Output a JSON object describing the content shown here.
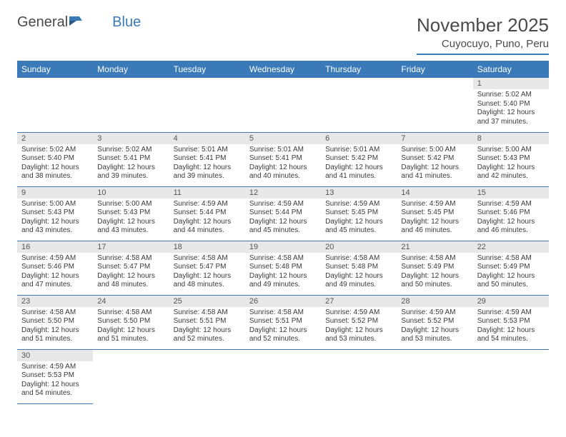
{
  "logo": {
    "general": "General",
    "blue": "Blue"
  },
  "title": "November 2025",
  "location": "Cuyocuyo, Puno, Peru",
  "colors": {
    "header_bg": "#3a7ab8",
    "header_text": "#ffffff",
    "daynum_bg": "#e8e8e8",
    "text": "#3a3a3a",
    "rule": "#3a7ab8",
    "page_bg": "#ffffff"
  },
  "weekdays": [
    "Sunday",
    "Monday",
    "Tuesday",
    "Wednesday",
    "Thursday",
    "Friday",
    "Saturday"
  ],
  "weeks": [
    [
      null,
      null,
      null,
      null,
      null,
      null,
      {
        "n": "1",
        "sr": "5:02 AM",
        "ss": "5:40 PM",
        "dl": "12 hours and 37 minutes."
      }
    ],
    [
      {
        "n": "2",
        "sr": "5:02 AM",
        "ss": "5:40 PM",
        "dl": "12 hours and 38 minutes."
      },
      {
        "n": "3",
        "sr": "5:02 AM",
        "ss": "5:41 PM",
        "dl": "12 hours and 39 minutes."
      },
      {
        "n": "4",
        "sr": "5:01 AM",
        "ss": "5:41 PM",
        "dl": "12 hours and 39 minutes."
      },
      {
        "n": "5",
        "sr": "5:01 AM",
        "ss": "5:41 PM",
        "dl": "12 hours and 40 minutes."
      },
      {
        "n": "6",
        "sr": "5:01 AM",
        "ss": "5:42 PM",
        "dl": "12 hours and 41 minutes."
      },
      {
        "n": "7",
        "sr": "5:00 AM",
        "ss": "5:42 PM",
        "dl": "12 hours and 41 minutes."
      },
      {
        "n": "8",
        "sr": "5:00 AM",
        "ss": "5:43 PM",
        "dl": "12 hours and 42 minutes."
      }
    ],
    [
      {
        "n": "9",
        "sr": "5:00 AM",
        "ss": "5:43 PM",
        "dl": "12 hours and 43 minutes."
      },
      {
        "n": "10",
        "sr": "5:00 AM",
        "ss": "5:43 PM",
        "dl": "12 hours and 43 minutes."
      },
      {
        "n": "11",
        "sr": "4:59 AM",
        "ss": "5:44 PM",
        "dl": "12 hours and 44 minutes."
      },
      {
        "n": "12",
        "sr": "4:59 AM",
        "ss": "5:44 PM",
        "dl": "12 hours and 45 minutes."
      },
      {
        "n": "13",
        "sr": "4:59 AM",
        "ss": "5:45 PM",
        "dl": "12 hours and 45 minutes."
      },
      {
        "n": "14",
        "sr": "4:59 AM",
        "ss": "5:45 PM",
        "dl": "12 hours and 46 minutes."
      },
      {
        "n": "15",
        "sr": "4:59 AM",
        "ss": "5:46 PM",
        "dl": "12 hours and 46 minutes."
      }
    ],
    [
      {
        "n": "16",
        "sr": "4:59 AM",
        "ss": "5:46 PM",
        "dl": "12 hours and 47 minutes."
      },
      {
        "n": "17",
        "sr": "4:58 AM",
        "ss": "5:47 PM",
        "dl": "12 hours and 48 minutes."
      },
      {
        "n": "18",
        "sr": "4:58 AM",
        "ss": "5:47 PM",
        "dl": "12 hours and 48 minutes."
      },
      {
        "n": "19",
        "sr": "4:58 AM",
        "ss": "5:48 PM",
        "dl": "12 hours and 49 minutes."
      },
      {
        "n": "20",
        "sr": "4:58 AM",
        "ss": "5:48 PM",
        "dl": "12 hours and 49 minutes."
      },
      {
        "n": "21",
        "sr": "4:58 AM",
        "ss": "5:49 PM",
        "dl": "12 hours and 50 minutes."
      },
      {
        "n": "22",
        "sr": "4:58 AM",
        "ss": "5:49 PM",
        "dl": "12 hours and 50 minutes."
      }
    ],
    [
      {
        "n": "23",
        "sr": "4:58 AM",
        "ss": "5:50 PM",
        "dl": "12 hours and 51 minutes."
      },
      {
        "n": "24",
        "sr": "4:58 AM",
        "ss": "5:50 PM",
        "dl": "12 hours and 51 minutes."
      },
      {
        "n": "25",
        "sr": "4:58 AM",
        "ss": "5:51 PM",
        "dl": "12 hours and 52 minutes."
      },
      {
        "n": "26",
        "sr": "4:58 AM",
        "ss": "5:51 PM",
        "dl": "12 hours and 52 minutes."
      },
      {
        "n": "27",
        "sr": "4:59 AM",
        "ss": "5:52 PM",
        "dl": "12 hours and 53 minutes."
      },
      {
        "n": "28",
        "sr": "4:59 AM",
        "ss": "5:52 PM",
        "dl": "12 hours and 53 minutes."
      },
      {
        "n": "29",
        "sr": "4:59 AM",
        "ss": "5:53 PM",
        "dl": "12 hours and 54 minutes."
      }
    ],
    [
      {
        "n": "30",
        "sr": "4:59 AM",
        "ss": "5:53 PM",
        "dl": "12 hours and 54 minutes."
      },
      null,
      null,
      null,
      null,
      null,
      null
    ]
  ],
  "labels": {
    "sunrise": "Sunrise: ",
    "sunset": "Sunset: ",
    "daylight": "Daylight: "
  }
}
